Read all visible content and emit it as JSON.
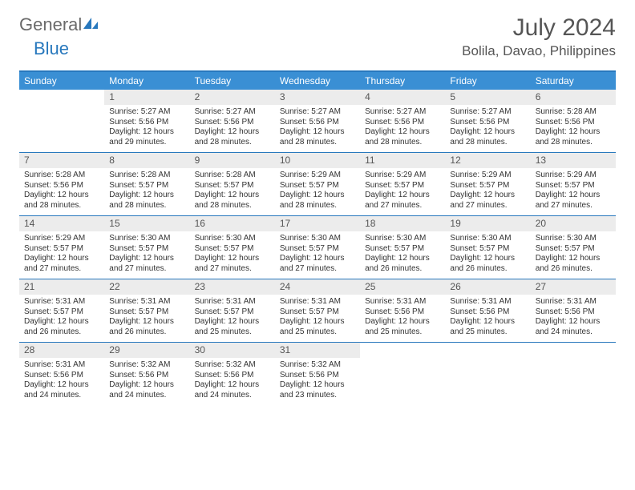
{
  "brand": {
    "name_gray": "General",
    "name_blue": "Blue"
  },
  "title": "July 2024",
  "location": "Bolila, Davao, Philippines",
  "colors": {
    "header_bg": "#3a8fd4",
    "border": "#2878bd",
    "daynum_bg": "#ececec",
    "text": "#333333"
  },
  "day_headers": [
    "Sunday",
    "Monday",
    "Tuesday",
    "Wednesday",
    "Thursday",
    "Friday",
    "Saturday"
  ],
  "weeks": [
    [
      {
        "n": "",
        "sr": "",
        "ss": "",
        "dl": ""
      },
      {
        "n": "1",
        "sr": "Sunrise: 5:27 AM",
        "ss": "Sunset: 5:56 PM",
        "dl": "Daylight: 12 hours and 29 minutes."
      },
      {
        "n": "2",
        "sr": "Sunrise: 5:27 AM",
        "ss": "Sunset: 5:56 PM",
        "dl": "Daylight: 12 hours and 28 minutes."
      },
      {
        "n": "3",
        "sr": "Sunrise: 5:27 AM",
        "ss": "Sunset: 5:56 PM",
        "dl": "Daylight: 12 hours and 28 minutes."
      },
      {
        "n": "4",
        "sr": "Sunrise: 5:27 AM",
        "ss": "Sunset: 5:56 PM",
        "dl": "Daylight: 12 hours and 28 minutes."
      },
      {
        "n": "5",
        "sr": "Sunrise: 5:27 AM",
        "ss": "Sunset: 5:56 PM",
        "dl": "Daylight: 12 hours and 28 minutes."
      },
      {
        "n": "6",
        "sr": "Sunrise: 5:28 AM",
        "ss": "Sunset: 5:56 PM",
        "dl": "Daylight: 12 hours and 28 minutes."
      }
    ],
    [
      {
        "n": "7",
        "sr": "Sunrise: 5:28 AM",
        "ss": "Sunset: 5:56 PM",
        "dl": "Daylight: 12 hours and 28 minutes."
      },
      {
        "n": "8",
        "sr": "Sunrise: 5:28 AM",
        "ss": "Sunset: 5:57 PM",
        "dl": "Daylight: 12 hours and 28 minutes."
      },
      {
        "n": "9",
        "sr": "Sunrise: 5:28 AM",
        "ss": "Sunset: 5:57 PM",
        "dl": "Daylight: 12 hours and 28 minutes."
      },
      {
        "n": "10",
        "sr": "Sunrise: 5:29 AM",
        "ss": "Sunset: 5:57 PM",
        "dl": "Daylight: 12 hours and 28 minutes."
      },
      {
        "n": "11",
        "sr": "Sunrise: 5:29 AM",
        "ss": "Sunset: 5:57 PM",
        "dl": "Daylight: 12 hours and 27 minutes."
      },
      {
        "n": "12",
        "sr": "Sunrise: 5:29 AM",
        "ss": "Sunset: 5:57 PM",
        "dl": "Daylight: 12 hours and 27 minutes."
      },
      {
        "n": "13",
        "sr": "Sunrise: 5:29 AM",
        "ss": "Sunset: 5:57 PM",
        "dl": "Daylight: 12 hours and 27 minutes."
      }
    ],
    [
      {
        "n": "14",
        "sr": "Sunrise: 5:29 AM",
        "ss": "Sunset: 5:57 PM",
        "dl": "Daylight: 12 hours and 27 minutes."
      },
      {
        "n": "15",
        "sr": "Sunrise: 5:30 AM",
        "ss": "Sunset: 5:57 PM",
        "dl": "Daylight: 12 hours and 27 minutes."
      },
      {
        "n": "16",
        "sr": "Sunrise: 5:30 AM",
        "ss": "Sunset: 5:57 PM",
        "dl": "Daylight: 12 hours and 27 minutes."
      },
      {
        "n": "17",
        "sr": "Sunrise: 5:30 AM",
        "ss": "Sunset: 5:57 PM",
        "dl": "Daylight: 12 hours and 27 minutes."
      },
      {
        "n": "18",
        "sr": "Sunrise: 5:30 AM",
        "ss": "Sunset: 5:57 PM",
        "dl": "Daylight: 12 hours and 26 minutes."
      },
      {
        "n": "19",
        "sr": "Sunrise: 5:30 AM",
        "ss": "Sunset: 5:57 PM",
        "dl": "Daylight: 12 hours and 26 minutes."
      },
      {
        "n": "20",
        "sr": "Sunrise: 5:30 AM",
        "ss": "Sunset: 5:57 PM",
        "dl": "Daylight: 12 hours and 26 minutes."
      }
    ],
    [
      {
        "n": "21",
        "sr": "Sunrise: 5:31 AM",
        "ss": "Sunset: 5:57 PM",
        "dl": "Daylight: 12 hours and 26 minutes."
      },
      {
        "n": "22",
        "sr": "Sunrise: 5:31 AM",
        "ss": "Sunset: 5:57 PM",
        "dl": "Daylight: 12 hours and 26 minutes."
      },
      {
        "n": "23",
        "sr": "Sunrise: 5:31 AM",
        "ss": "Sunset: 5:57 PM",
        "dl": "Daylight: 12 hours and 25 minutes."
      },
      {
        "n": "24",
        "sr": "Sunrise: 5:31 AM",
        "ss": "Sunset: 5:57 PM",
        "dl": "Daylight: 12 hours and 25 minutes."
      },
      {
        "n": "25",
        "sr": "Sunrise: 5:31 AM",
        "ss": "Sunset: 5:56 PM",
        "dl": "Daylight: 12 hours and 25 minutes."
      },
      {
        "n": "26",
        "sr": "Sunrise: 5:31 AM",
        "ss": "Sunset: 5:56 PM",
        "dl": "Daylight: 12 hours and 25 minutes."
      },
      {
        "n": "27",
        "sr": "Sunrise: 5:31 AM",
        "ss": "Sunset: 5:56 PM",
        "dl": "Daylight: 12 hours and 24 minutes."
      }
    ],
    [
      {
        "n": "28",
        "sr": "Sunrise: 5:31 AM",
        "ss": "Sunset: 5:56 PM",
        "dl": "Daylight: 12 hours and 24 minutes."
      },
      {
        "n": "29",
        "sr": "Sunrise: 5:32 AM",
        "ss": "Sunset: 5:56 PM",
        "dl": "Daylight: 12 hours and 24 minutes."
      },
      {
        "n": "30",
        "sr": "Sunrise: 5:32 AM",
        "ss": "Sunset: 5:56 PM",
        "dl": "Daylight: 12 hours and 24 minutes."
      },
      {
        "n": "31",
        "sr": "Sunrise: 5:32 AM",
        "ss": "Sunset: 5:56 PM",
        "dl": "Daylight: 12 hours and 23 minutes."
      },
      {
        "n": "",
        "sr": "",
        "ss": "",
        "dl": ""
      },
      {
        "n": "",
        "sr": "",
        "ss": "",
        "dl": ""
      },
      {
        "n": "",
        "sr": "",
        "ss": "",
        "dl": ""
      }
    ]
  ]
}
